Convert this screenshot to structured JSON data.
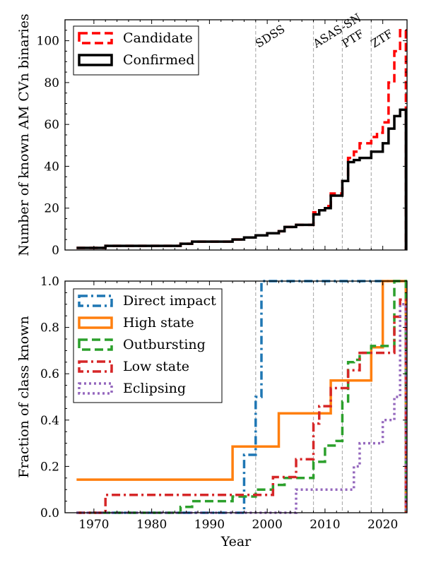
{
  "chart_data": [
    {
      "type": "line",
      "drawstyle": "steps-post",
      "xlabel": "",
      "ylabel": "Number of known AM CVn binaries",
      "xlim": [
        1965,
        2024.2
      ],
      "ylim": [
        0,
        110
      ],
      "yticks": [
        0,
        20,
        40,
        60,
        80,
        100
      ],
      "xticks": [
        1970,
        1980,
        1990,
        2000,
        2010,
        2020
      ],
      "show_xtick_labels": false,
      "grid": false,
      "legend_position": "top-left",
      "series": [
        {
          "name": "Candidate",
          "color": "#ff0000",
          "dash": "dashed",
          "x": [
            1967,
            1972,
            1985,
            1987,
            1994,
            1996,
            1998,
            2000,
            2002,
            2003,
            2005,
            2008,
            2009,
            2010,
            2011,
            2013,
            2014,
            2015,
            2016,
            2018,
            2019,
            2020,
            2021,
            2022,
            2023,
            2024
          ],
          "y": [
            1,
            2,
            3,
            4,
            5,
            6,
            7,
            8,
            9,
            11,
            12,
            18,
            19,
            21,
            27,
            33,
            44,
            47,
            51,
            54,
            56,
            61,
            80,
            95,
            105,
            105
          ]
        },
        {
          "name": "Confirmed",
          "color": "#000000",
          "dash": "solid",
          "x": [
            1967,
            1972,
            1985,
            1987,
            1994,
            1996,
            1998,
            2000,
            2002,
            2003,
            2005,
            2008,
            2009,
            2010,
            2011,
            2013,
            2014,
            2015,
            2016,
            2018,
            2019,
            2020,
            2021,
            2022,
            2023,
            2024
          ],
          "y": [
            1,
            2,
            3,
            4,
            5,
            6,
            7,
            8,
            9,
            11,
            12,
            17,
            19,
            20,
            26,
            33,
            42,
            43,
            44,
            47,
            47,
            51,
            58,
            64,
            67,
            67
          ]
        }
      ],
      "annotations": [
        {
          "x": 1998,
          "label": "SDSS"
        },
        {
          "x": 2008,
          "label": "ASAS-SN"
        },
        {
          "x": 2013,
          "label": "PTF"
        },
        {
          "x": 2018,
          "label": "ZTF"
        }
      ]
    },
    {
      "type": "line",
      "drawstyle": "steps-post",
      "xlabel": "Year",
      "ylabel": "Fraction of class known",
      "xlim": [
        1965,
        2024.2
      ],
      "ylim": [
        0,
        1.0
      ],
      "yticks": [
        "0.0",
        "0.2",
        "0.4",
        "0.6",
        "0.8",
        "1.0"
      ],
      "xticks": [
        1970,
        1980,
        1990,
        2000,
        2010,
        2020
      ],
      "grid": false,
      "legend_position": "top-left",
      "series": [
        {
          "name": "Direct impact",
          "color": "#1f77b4",
          "dash": "dashdot",
          "x": [
            1967,
            1996,
            1998,
            1999,
            2024
          ],
          "y": [
            0.0,
            0.25,
            0.5,
            1.0,
            1.0
          ]
        },
        {
          "name": "High state",
          "color": "#ff7f0e",
          "dash": "solid",
          "x": [
            1967,
            1994,
            2002,
            2011,
            2018,
            2020,
            2024
          ],
          "y": [
            0.143,
            0.286,
            0.429,
            0.571,
            0.714,
            1.0,
            1.0
          ]
        },
        {
          "name": "Outbursting",
          "color": "#2ca02c",
          "dash": "dashed",
          "x": [
            1967,
            1985,
            1987,
            1994,
            1998,
            2001,
            2003,
            2008,
            2010,
            2012,
            2013,
            2014,
            2015,
            2016,
            2018,
            2020,
            2022,
            2024
          ],
          "y": [
            0.0,
            0.025,
            0.05,
            0.07,
            0.1,
            0.12,
            0.15,
            0.22,
            0.29,
            0.31,
            0.48,
            0.65,
            0.66,
            0.69,
            0.72,
            0.72,
            1.0,
            1.0
          ]
        },
        {
          "name": "Low state",
          "color": "#d62728",
          "dash": "dashdot",
          "x": [
            1967,
            1972,
            1994,
            2001,
            2005,
            2008,
            2009,
            2011,
            2014,
            2015,
            2016,
            2018,
            2022,
            2023,
            2024
          ],
          "y": [
            0.0,
            0.077,
            0.077,
            0.154,
            0.231,
            0.385,
            0.46,
            0.538,
            0.615,
            0.615,
            0.69,
            0.69,
            0.846,
            0.92,
            0.92
          ]
        },
        {
          "name": "Eclipsing",
          "color": "#9467bd",
          "dash": "dotted",
          "x": [
            1967,
            2005,
            2014,
            2015,
            2016,
            2020,
            2022,
            2023,
            2024
          ],
          "y": [
            0.0,
            0.1,
            0.1,
            0.2,
            0.3,
            0.4,
            0.5,
            0.9,
            0.9
          ]
        }
      ],
      "annotations": [
        {
          "x": 1998,
          "label": ""
        },
        {
          "x": 2008,
          "label": ""
        },
        {
          "x": 2013,
          "label": ""
        },
        {
          "x": 2018,
          "label": ""
        }
      ]
    }
  ]
}
